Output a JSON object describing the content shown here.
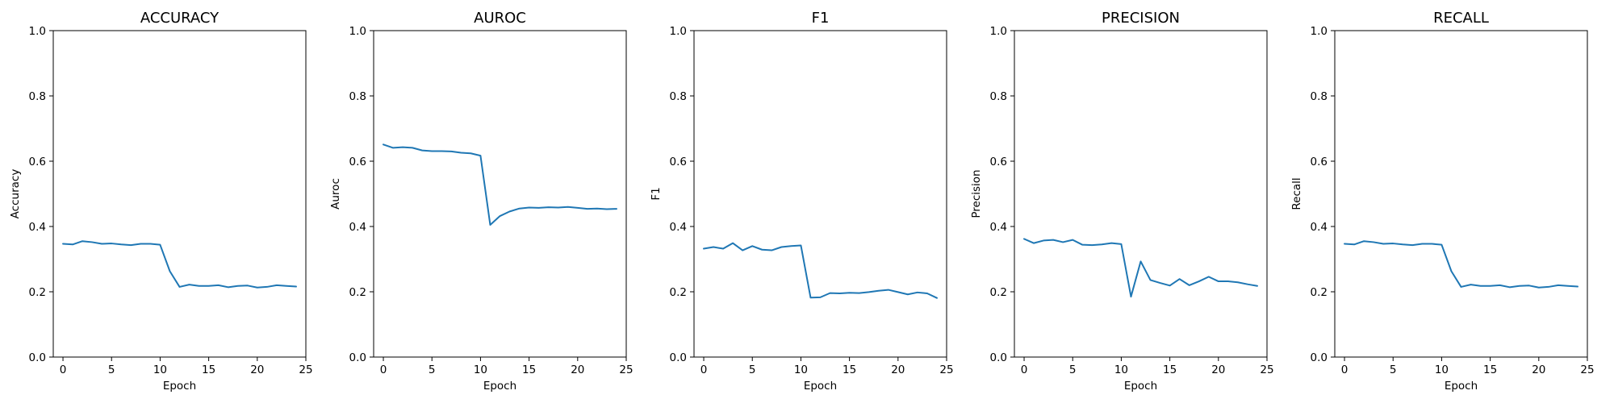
{
  "colors": {
    "series": "#1f77b4"
  },
  "chart_data": [
    {
      "type": "line",
      "title": "ACCURACY",
      "xlabel": "Epoch",
      "ylabel": "Accuracy",
      "xlim": [
        -1,
        25
      ],
      "ylim": [
        0.0,
        1.0
      ],
      "xticks": [
        0,
        5,
        10,
        15,
        20,
        25
      ],
      "yticks": [
        0.0,
        0.2,
        0.4,
        0.6,
        0.8,
        1.0
      ],
      "grid": false,
      "x": [
        0,
        1,
        2,
        3,
        4,
        5,
        6,
        7,
        8,
        9,
        10,
        11,
        12,
        13,
        14,
        15,
        16,
        17,
        18,
        19,
        20,
        21,
        22,
        23,
        24
      ],
      "series": [
        {
          "values": [
            0.347,
            0.345,
            0.355,
            0.352,
            0.347,
            0.348,
            0.345,
            0.343,
            0.347,
            0.347,
            0.344,
            0.263,
            0.215,
            0.222,
            0.218,
            0.218,
            0.22,
            0.214,
            0.218,
            0.219,
            0.213,
            0.215,
            0.22,
            0.218,
            0.216
          ]
        }
      ]
    },
    {
      "type": "line",
      "title": "AUROC",
      "xlabel": "Epoch",
      "ylabel": "Auroc",
      "xlim": [
        -1,
        25
      ],
      "ylim": [
        0.0,
        1.0
      ],
      "xticks": [
        0,
        5,
        10,
        15,
        20,
        25
      ],
      "yticks": [
        0.0,
        0.2,
        0.4,
        0.6,
        0.8,
        1.0
      ],
      "grid": false,
      "x": [
        0,
        1,
        2,
        3,
        4,
        5,
        6,
        7,
        8,
        9,
        10,
        11,
        12,
        13,
        14,
        15,
        16,
        17,
        18,
        19,
        20,
        21,
        22,
        23,
        24
      ],
      "series": [
        {
          "values": [
            0.651,
            0.641,
            0.643,
            0.641,
            0.633,
            0.631,
            0.631,
            0.63,
            0.626,
            0.624,
            0.617,
            0.405,
            0.432,
            0.446,
            0.455,
            0.458,
            0.457,
            0.459,
            0.458,
            0.46,
            0.457,
            0.454,
            0.455,
            0.453,
            0.454
          ]
        }
      ]
    },
    {
      "type": "line",
      "title": "F1",
      "xlabel": "Epoch",
      "ylabel": "F1",
      "xlim": [
        -1,
        25
      ],
      "ylim": [
        0.0,
        1.0
      ],
      "xticks": [
        0,
        5,
        10,
        15,
        20,
        25
      ],
      "yticks": [
        0.0,
        0.2,
        0.4,
        0.6,
        0.8,
        1.0
      ],
      "grid": false,
      "x": [
        0,
        1,
        2,
        3,
        4,
        5,
        6,
        7,
        8,
        9,
        10,
        11,
        12,
        13,
        14,
        15,
        16,
        17,
        18,
        19,
        20,
        21,
        22,
        23,
        24
      ],
      "series": [
        {
          "values": [
            0.332,
            0.337,
            0.332,
            0.349,
            0.327,
            0.34,
            0.329,
            0.327,
            0.337,
            0.34,
            0.342,
            0.182,
            0.183,
            0.196,
            0.195,
            0.197,
            0.196,
            0.199,
            0.203,
            0.206,
            0.199,
            0.192,
            0.198,
            0.195,
            0.181
          ]
        }
      ]
    },
    {
      "type": "line",
      "title": "PRECISION",
      "xlabel": "Epoch",
      "ylabel": "Precision",
      "xlim": [
        -1,
        25
      ],
      "ylim": [
        0.0,
        1.0
      ],
      "xticks": [
        0,
        5,
        10,
        15,
        20,
        25
      ],
      "yticks": [
        0.0,
        0.2,
        0.4,
        0.6,
        0.8,
        1.0
      ],
      "grid": false,
      "x": [
        0,
        1,
        2,
        3,
        4,
        5,
        6,
        7,
        8,
        9,
        10,
        11,
        12,
        13,
        14,
        15,
        16,
        17,
        18,
        19,
        20,
        21,
        22,
        23,
        24
      ],
      "series": [
        {
          "values": [
            0.362,
            0.349,
            0.357,
            0.359,
            0.352,
            0.359,
            0.344,
            0.343,
            0.345,
            0.349,
            0.346,
            0.185,
            0.293,
            0.236,
            0.227,
            0.219,
            0.239,
            0.22,
            0.232,
            0.246,
            0.232,
            0.232,
            0.229,
            0.223,
            0.218
          ]
        }
      ]
    },
    {
      "type": "line",
      "title": "RECALL",
      "xlabel": "Epoch",
      "ylabel": "Recall",
      "xlim": [
        -1,
        25
      ],
      "ylim": [
        0.0,
        1.0
      ],
      "xticks": [
        0,
        5,
        10,
        15,
        20,
        25
      ],
      "yticks": [
        0.0,
        0.2,
        0.4,
        0.6,
        0.8,
        1.0
      ],
      "grid": false,
      "x": [
        0,
        1,
        2,
        3,
        4,
        5,
        6,
        7,
        8,
        9,
        10,
        11,
        12,
        13,
        14,
        15,
        16,
        17,
        18,
        19,
        20,
        21,
        22,
        23,
        24
      ],
      "series": [
        {
          "values": [
            0.347,
            0.345,
            0.355,
            0.352,
            0.347,
            0.348,
            0.345,
            0.343,
            0.347,
            0.347,
            0.344,
            0.263,
            0.215,
            0.222,
            0.218,
            0.218,
            0.22,
            0.214,
            0.218,
            0.219,
            0.213,
            0.215,
            0.22,
            0.218,
            0.216
          ]
        }
      ]
    }
  ]
}
